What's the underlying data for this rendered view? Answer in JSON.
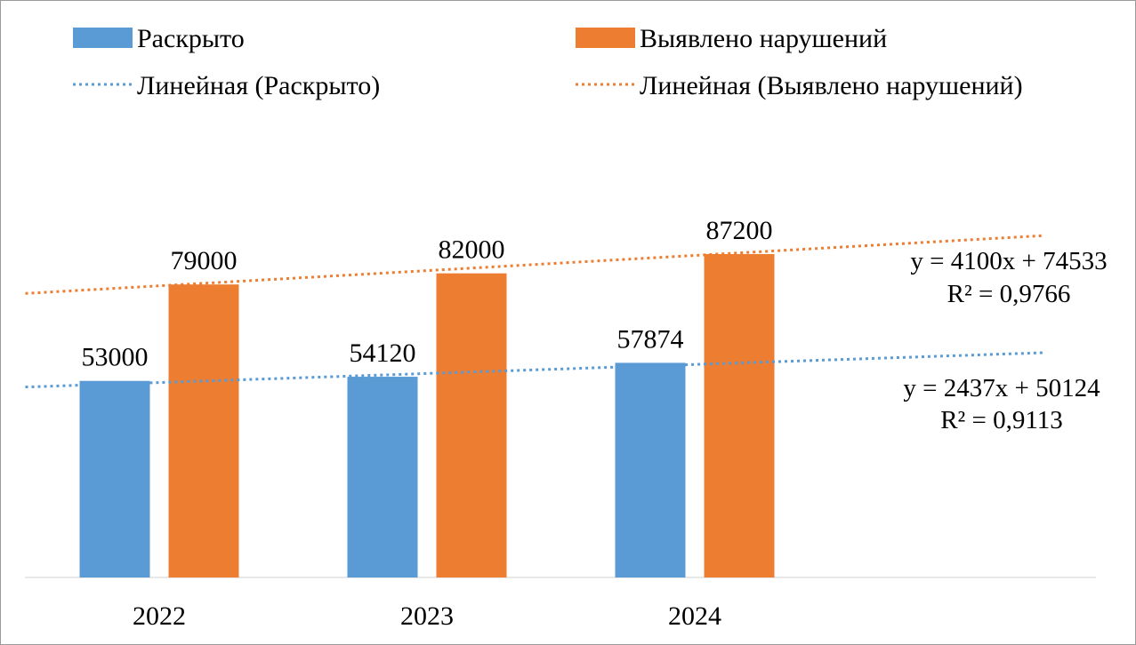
{
  "colors": {
    "series_blue": "#5b9bd5",
    "series_orange": "#ed7d31",
    "axis": "#d0d0d0",
    "text": "#000000"
  },
  "chart_data": {
    "type": "bar",
    "categories": [
      "2022",
      "2023",
      "2024"
    ],
    "series": [
      {
        "name": "Раскрыто",
        "values": [
          53000,
          54120,
          57874
        ],
        "color": "#5b9bd5"
      },
      {
        "name": "Выявлено нарушений",
        "values": [
          79000,
          82000,
          87200
        ],
        "color": "#ed7d31"
      }
    ],
    "trendlines": [
      {
        "name": "Линейная (Раскрыто)",
        "series": 0,
        "slope": 2437,
        "intercept": 50124,
        "equation": "y = 2437x + 50124",
        "r2": "R² = 0,9113",
        "color": "#5b9bd5",
        "style": "dotted"
      },
      {
        "name": "Линейная (Выявлено нарушений)",
        "series": 1,
        "slope": 4100,
        "intercept": 74533,
        "equation": "y = 4100x + 74533",
        "r2": "R² = 0,9766",
        "color": "#ed7d31",
        "style": "dotted"
      }
    ],
    "ylim": [
      0,
      103000
    ],
    "grid": false,
    "legend_position": "top",
    "data_labels": true
  }
}
